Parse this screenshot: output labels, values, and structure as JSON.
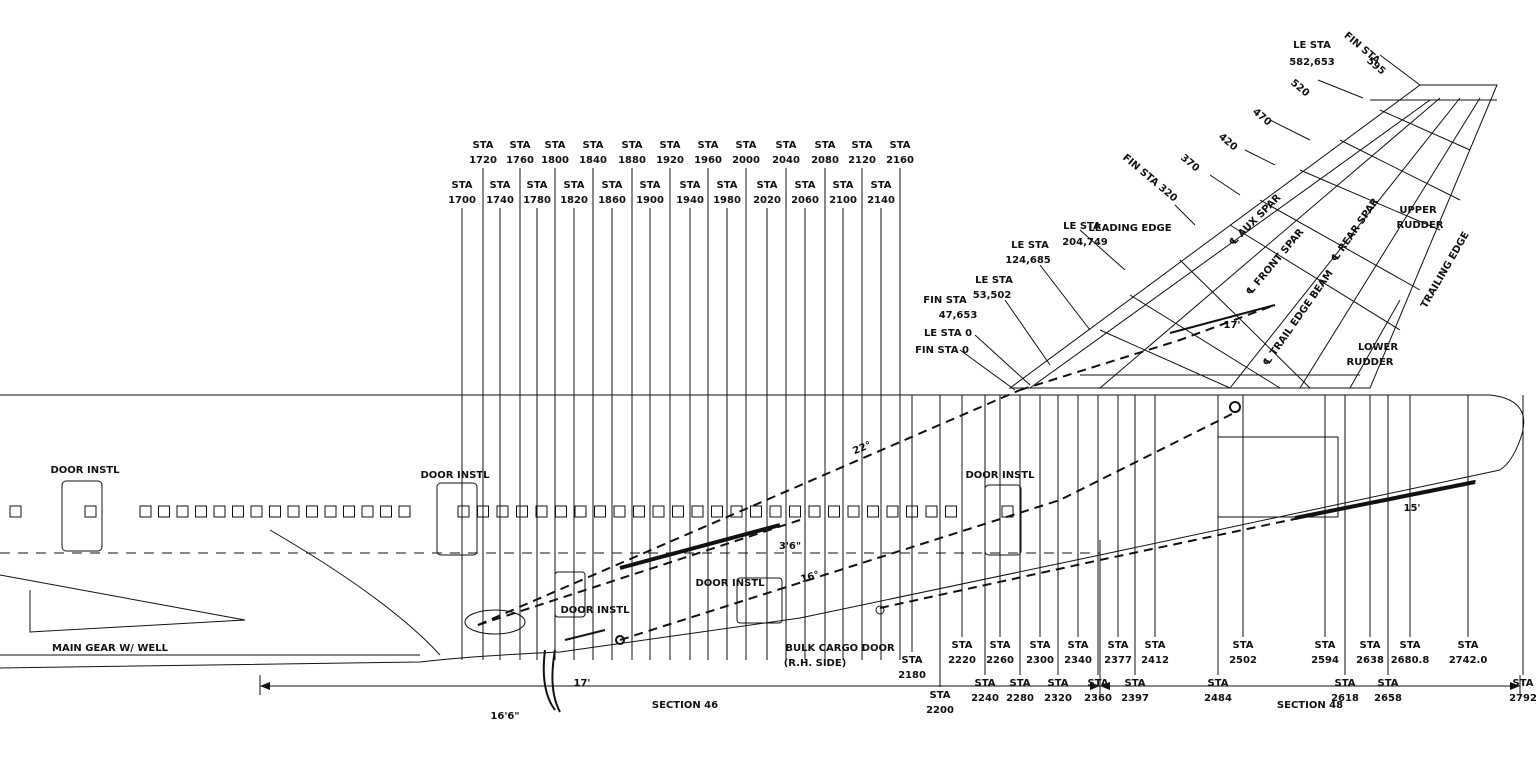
{
  "stations": [
    {
      "prefix": "STA",
      "number": "1720"
    },
    {
      "prefix": "STA",
      "number": "1760"
    },
    {
      "prefix": "STA",
      "number": "1800"
    },
    {
      "prefix": "STA",
      "number": "1840"
    },
    {
      "prefix": "STA",
      "number": "1880"
    },
    {
      "prefix": "STA",
      "number": "1920"
    },
    {
      "prefix": "STA",
      "number": "1960"
    },
    {
      "prefix": "STA",
      "number": "2000"
    },
    {
      "prefix": "STA",
      "number": "2040"
    },
    {
      "prefix": "STA",
      "number": "2080"
    },
    {
      "prefix": "STA",
      "number": "2120"
    },
    {
      "prefix": "STA",
      "number": "2160"
    },
    {
      "prefix": "STA",
      "number": "1700"
    },
    {
      "prefix": "STA",
      "number": "1740"
    },
    {
      "prefix": "STA",
      "number": "1780"
    },
    {
      "prefix": "STA",
      "number": "1820"
    },
    {
      "prefix": "STA",
      "number": "1860"
    },
    {
      "prefix": "STA",
      "number": "1900"
    },
    {
      "prefix": "STA",
      "number": "1940"
    },
    {
      "prefix": "STA",
      "number": "1980"
    },
    {
      "prefix": "STA",
      "number": "2020"
    },
    {
      "prefix": "STA",
      "number": "2060"
    },
    {
      "prefix": "STA",
      "number": "2100"
    },
    {
      "prefix": "STA",
      "number": "2140"
    },
    {
      "prefix": "STA",
      "number": "2180"
    },
    {
      "prefix": "STA",
      "number": "2200"
    },
    {
      "prefix": "STA",
      "number": "2220"
    },
    {
      "prefix": "STA",
      "number": "2240"
    },
    {
      "prefix": "STA",
      "number": "2260"
    },
    {
      "prefix": "STA",
      "number": "2280"
    },
    {
      "prefix": "STA",
      "number": "2300"
    },
    {
      "prefix": "STA",
      "number": "2320"
    },
    {
      "prefix": "STA",
      "number": "2340"
    },
    {
      "prefix": "STA",
      "number": "2360"
    },
    {
      "prefix": "STA",
      "number": "2377"
    },
    {
      "prefix": "STA",
      "number": "2397"
    },
    {
      "prefix": "STA",
      "number": "2412"
    },
    {
      "prefix": "STA",
      "number": "2484"
    },
    {
      "prefix": "STA",
      "number": "2502"
    },
    {
      "prefix": "STA",
      "number": "2594"
    },
    {
      "prefix": "STA",
      "number": "2618"
    },
    {
      "prefix": "STA",
      "number": "2638"
    },
    {
      "prefix": "STA",
      "number": "2658"
    },
    {
      "prefix": "STA",
      "number": "2680.8"
    },
    {
      "prefix": "STA",
      "number": "2742.0"
    },
    {
      "prefix": "STA",
      "number": "2792"
    }
  ],
  "tail_labels": [
    "LE STA",
    "582,653",
    "FIN STA",
    "595",
    "520",
    "470",
    "420",
    "370",
    "FIN STA 320",
    "LEADING EDGE",
    "LE STA",
    "204,749",
    "LE STA",
    "124,685",
    "LE STA",
    "53,502",
    "FIN STA",
    "47,653",
    "LE STA 0",
    "FIN STA 0",
    "℄ AUX SPAR",
    "℄ FRONT SPAR",
    "℄ REAR SPAR",
    "℄ TRAIL EDGE BEAM",
    "UPPER",
    "RUDDER",
    "TRAILING EDGE",
    "LOWER",
    "RUDDER",
    "17'"
  ],
  "fuselage_labels": [
    "DOOR INSTL",
    "DOOR INSTL",
    "DOOR INSTL",
    "DOOR INSTL",
    "DOOR INSTL",
    "MAIN GEAR W/ WELL",
    "BULK CARGO DOOR",
    "(R.H. SIDE)",
    "22°",
    "3'6\"",
    "16°",
    "15'",
    "16'6\"",
    "17'",
    "SECTION 46",
    "SECTION 48"
  ]
}
